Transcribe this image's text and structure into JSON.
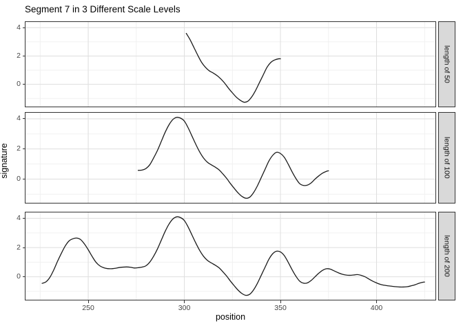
{
  "chart_data": {
    "type": "line",
    "title": "Segment 7 in 3 Different Scale Levels",
    "xlabel": "position",
    "ylabel": "signature",
    "xlim": [
      217,
      431
    ],
    "ylim": [
      -1.62,
      4.45
    ],
    "x_ticks": [
      250,
      300,
      350,
      400
    ],
    "x_minor_ticks": [
      225,
      275,
      325,
      375,
      425
    ],
    "y_ticks": [
      4,
      2,
      0
    ],
    "y_minor_ticks": [
      3,
      1,
      -1
    ],
    "grid": true,
    "legend": "none",
    "line_color": "#1a1a1a",
    "line_width": 1.3,
    "panel_bg": "#ffffff",
    "strip_bg": "#d9d9d9",
    "border_color": "#333333",
    "grid_major_color": "#dedede",
    "grid_minor_color": "#efefef",
    "tick_label_color": "#444444",
    "facets": [
      {
        "label": "length of 50",
        "x": [
          301,
          303,
          305,
          307,
          309,
          311,
          313,
          315,
          317,
          319,
          321,
          323,
          325,
          327,
          329,
          331,
          333,
          335,
          337,
          339,
          341,
          343,
          345,
          347,
          349,
          350
        ],
        "y": [
          3.6,
          3.15,
          2.6,
          2.05,
          1.55,
          1.2,
          0.95,
          0.8,
          0.62,
          0.38,
          0.08,
          -0.28,
          -0.6,
          -0.9,
          -1.12,
          -1.26,
          -1.2,
          -0.9,
          -0.45,
          0.1,
          0.65,
          1.2,
          1.55,
          1.72,
          1.8,
          1.8
        ]
      },
      {
        "label": "length of 100",
        "x": [
          276,
          278,
          280,
          282,
          284,
          286,
          288,
          290,
          292,
          294,
          296,
          298,
          300,
          302,
          304,
          306,
          308,
          310,
          312,
          314,
          316,
          318,
          320,
          322,
          324,
          326,
          328,
          330,
          332,
          334,
          336,
          338,
          340,
          342,
          344,
          346,
          348,
          350,
          352,
          354,
          356,
          358,
          360,
          362,
          364,
          366,
          368,
          370,
          372,
          374,
          375
        ],
        "y": [
          0.58,
          0.6,
          0.7,
          0.95,
          1.4,
          1.9,
          2.5,
          3.1,
          3.6,
          3.95,
          4.1,
          4.05,
          3.85,
          3.4,
          2.85,
          2.3,
          1.8,
          1.4,
          1.12,
          0.95,
          0.8,
          0.62,
          0.35,
          0.05,
          -0.3,
          -0.62,
          -0.92,
          -1.15,
          -1.27,
          -1.2,
          -0.9,
          -0.45,
          0.1,
          0.65,
          1.2,
          1.58,
          1.78,
          1.7,
          1.45,
          1.0,
          0.5,
          0.05,
          -0.3,
          -0.42,
          -0.4,
          -0.25,
          0.0,
          0.22,
          0.4,
          0.52,
          0.55
        ]
      },
      {
        "label": "length of 200",
        "x": [
          226,
          228,
          230,
          232,
          234,
          236,
          238,
          240,
          242,
          244,
          246,
          248,
          250,
          252,
          254,
          256,
          258,
          260,
          262,
          264,
          266,
          268,
          270,
          272,
          274,
          276,
          278,
          280,
          282,
          284,
          286,
          288,
          290,
          292,
          294,
          296,
          298,
          300,
          302,
          304,
          306,
          308,
          310,
          312,
          314,
          316,
          318,
          320,
          322,
          324,
          326,
          328,
          330,
          332,
          334,
          336,
          338,
          340,
          342,
          344,
          346,
          348,
          350,
          352,
          354,
          356,
          358,
          360,
          362,
          364,
          366,
          368,
          370,
          372,
          374,
          376,
          378,
          380,
          382,
          384,
          386,
          388,
          390,
          392,
          394,
          396,
          398,
          400,
          402,
          404,
          406,
          408,
          410,
          412,
          414,
          416,
          418,
          420,
          422,
          424,
          425
        ],
        "y": [
          -0.45,
          -0.35,
          -0.05,
          0.45,
          1.05,
          1.6,
          2.1,
          2.45,
          2.6,
          2.65,
          2.55,
          2.25,
          1.85,
          1.4,
          1.0,
          0.75,
          0.62,
          0.56,
          0.55,
          0.58,
          0.63,
          0.66,
          0.67,
          0.65,
          0.6,
          0.62,
          0.66,
          0.75,
          1.0,
          1.4,
          1.9,
          2.5,
          3.1,
          3.6,
          3.95,
          4.1,
          4.05,
          3.85,
          3.4,
          2.85,
          2.3,
          1.8,
          1.4,
          1.12,
          0.95,
          0.8,
          0.62,
          0.35,
          0.05,
          -0.3,
          -0.62,
          -0.92,
          -1.15,
          -1.27,
          -1.2,
          -0.9,
          -0.45,
          0.1,
          0.65,
          1.2,
          1.58,
          1.75,
          1.7,
          1.45,
          1.0,
          0.5,
          0.05,
          -0.3,
          -0.44,
          -0.42,
          -0.25,
          0.0,
          0.25,
          0.45,
          0.55,
          0.52,
          0.4,
          0.28,
          0.18,
          0.12,
          0.1,
          0.12,
          0.15,
          0.1,
          0.0,
          -0.15,
          -0.3,
          -0.42,
          -0.52,
          -0.58,
          -0.62,
          -0.65,
          -0.68,
          -0.7,
          -0.7,
          -0.68,
          -0.62,
          -0.55,
          -0.45,
          -0.38,
          -0.36
        ]
      }
    ]
  }
}
